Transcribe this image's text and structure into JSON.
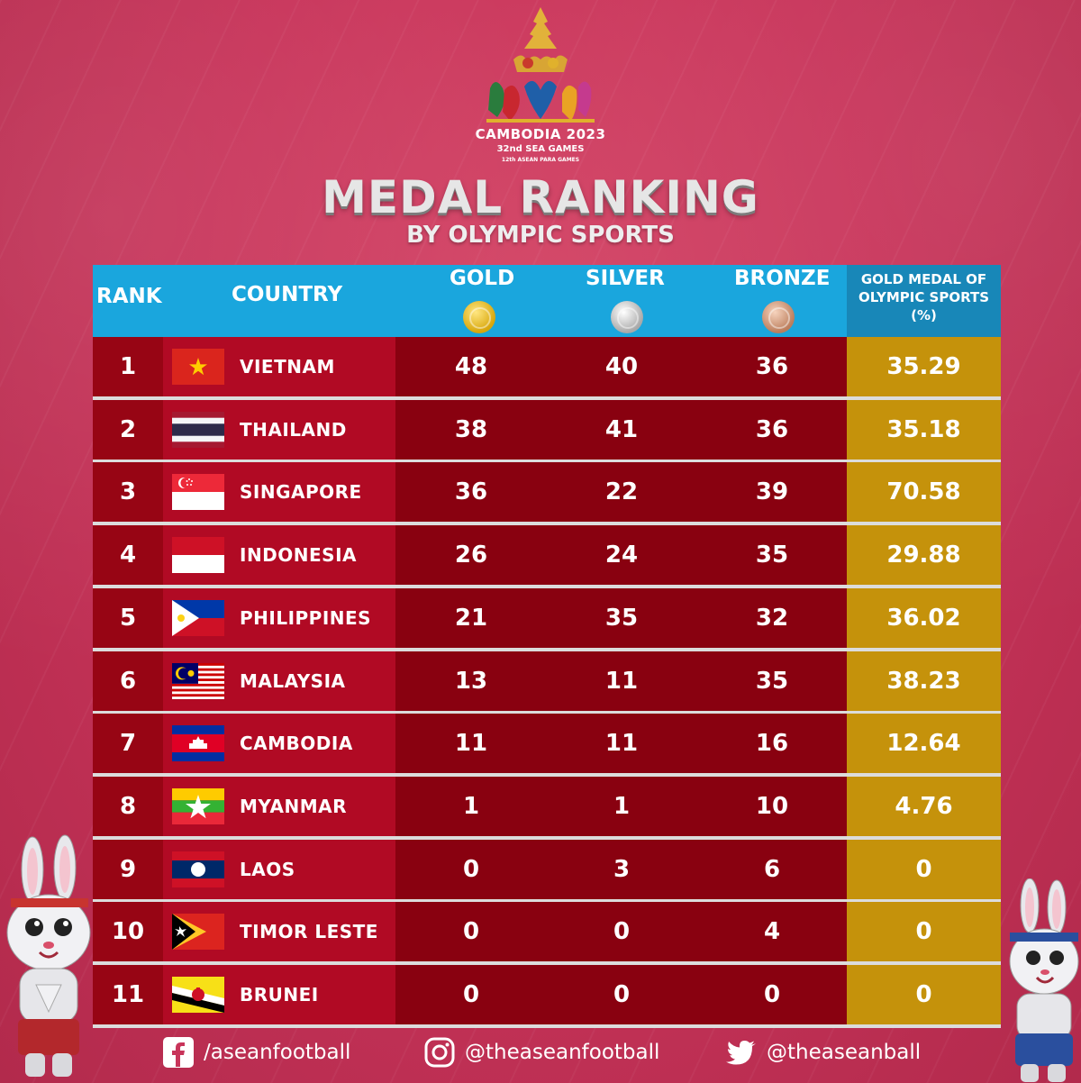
{
  "logo": {
    "line1": "CAMBODIA 2023",
    "line2": "32nd SEA GAMES",
    "line3": "12th ASEAN PARA GAMES"
  },
  "title": "MEDAL RANKING",
  "subtitle": "BY OLYMPIC SPORTS",
  "headers": {
    "rank": "RANK",
    "country": "COUNTRY",
    "gold": "GOLD",
    "silver": "SILVER",
    "bronze": "BRONZE",
    "pct_line1": "GOLD MEDAL OF",
    "pct_line2": "OLYMPIC SPORTS",
    "pct_line3": "(%)"
  },
  "rows": [
    {
      "rank": "1",
      "country": "VIETNAM",
      "gold": "48",
      "silver": "40",
      "bronze": "36",
      "pct": "35.29",
      "flag": "vietnam"
    },
    {
      "rank": "2",
      "country": "THAILAND",
      "gold": "38",
      "silver": "41",
      "bronze": "36",
      "pct": "35.18",
      "flag": "thailand"
    },
    {
      "rank": "3",
      "country": "SINGAPORE",
      "gold": "36",
      "silver": "22",
      "bronze": "39",
      "pct": "70.58",
      "flag": "singapore"
    },
    {
      "rank": "4",
      "country": "INDONESIA",
      "gold": "26",
      "silver": "24",
      "bronze": "35",
      "pct": "29.88",
      "flag": "indonesia"
    },
    {
      "rank": "5",
      "country": "PHILIPPINES",
      "gold": "21",
      "silver": "35",
      "bronze": "32",
      "pct": "36.02",
      "flag": "philippines"
    },
    {
      "rank": "6",
      "country": "MALAYSIA",
      "gold": "13",
      "silver": "11",
      "bronze": "35",
      "pct": "38.23",
      "flag": "malaysia"
    },
    {
      "rank": "7",
      "country": "CAMBODIA",
      "gold": "11",
      "silver": "11",
      "bronze": "16",
      "pct": "12.64",
      "flag": "cambodia"
    },
    {
      "rank": "8",
      "country": "MYANMAR",
      "gold": "1",
      "silver": "1",
      "bronze": "10",
      "pct": "4.76",
      "flag": "myanmar"
    },
    {
      "rank": "9",
      "country": "LAOS",
      "gold": "0",
      "silver": "3",
      "bronze": "6",
      "pct": "0",
      "flag": "laos"
    },
    {
      "rank": "10",
      "country": "TIMOR LESTE",
      "gold": "0",
      "silver": "0",
      "bronze": "4",
      "pct": "0",
      "flag": "timor-leste"
    },
    {
      "rank": "11",
      "country": "BRUNEI",
      "gold": "0",
      "silver": "0",
      "bronze": "0",
      "pct": "0",
      "flag": "brunei"
    }
  ],
  "footer": {
    "facebook": "/aseanfootball",
    "instagram": "@theaseanfootball",
    "twitter": "@theaseanball"
  },
  "colors": {
    "header_blue": "#1aa6dd",
    "row_red": "#890110",
    "country_red": "#b10a24",
    "pct_gold": "#c5920b",
    "background": "#c8345a"
  },
  "icons": [
    "gold-medal-icon",
    "silver-medal-icon",
    "bronze-medal-icon",
    "facebook-icon",
    "instagram-icon",
    "twitter-icon"
  ]
}
